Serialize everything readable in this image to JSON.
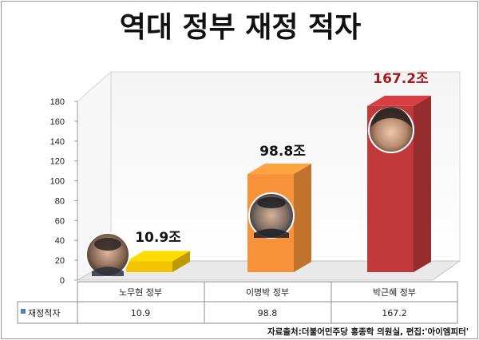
{
  "chart_data": {
    "type": "bar",
    "title": "역대 정부 재정 적자",
    "categories": [
      "노무현 정부",
      "이명박 정부",
      "박근혜 정부"
    ],
    "series": [
      {
        "name": "재정적자",
        "values": [
          10.9,
          98.8,
          167.2
        ],
        "legend_color": "#4f81bd"
      }
    ],
    "data_labels": [
      "10.9조",
      "98.8조",
      "167.2조"
    ],
    "yticks": [
      "0",
      "20",
      "40",
      "60",
      "80",
      "100",
      "120",
      "140",
      "160",
      "180"
    ],
    "ylim": [
      0,
      180
    ],
    "bar_colors": [
      "#f5c400",
      "#f7923a",
      "#c0393b"
    ],
    "label_colors": [
      "#111111",
      "#111111",
      "#a01c1c"
    ],
    "grid": false,
    "style": "3d-bar",
    "legend": "data-table-below",
    "source": "자료출처:더불어민주당 홍종학 의원실, 편집:'아이엠피터'"
  }
}
